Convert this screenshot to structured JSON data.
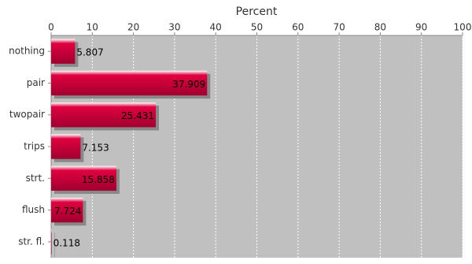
{
  "chart_data": {
    "type": "bar",
    "orientation": "horizontal",
    "x_label": "Percent",
    "categories": [
      "nothing",
      "pair",
      "twopair",
      "trips",
      "strt.",
      "flush",
      "str. fl."
    ],
    "values": [
      5.807,
      37.909,
      25.431,
      7.153,
      15.858,
      7.724,
      0.118
    ],
    "color": "#cc0044",
    "xlim": [
      0,
      100
    ],
    "xticks": [
      0,
      10,
      20,
      30,
      40,
      50,
      60,
      70,
      80,
      90,
      100
    ],
    "grid": true
  }
}
